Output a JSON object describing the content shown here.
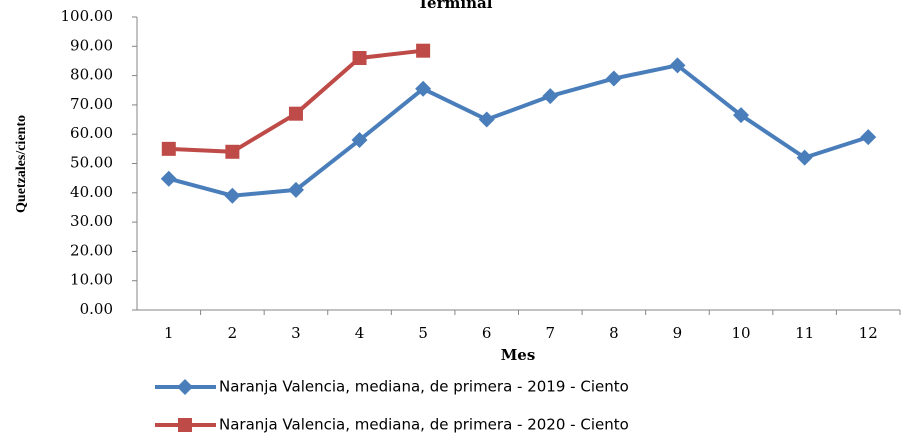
{
  "chart_data": {
    "type": "line",
    "title": "Terminal",
    "x_label": "Mes",
    "y_label": "Quetzales/ciento",
    "categories": [
      "1",
      "2",
      "3",
      "4",
      "5",
      "6",
      "7",
      "8",
      "9",
      "10",
      "11",
      "12"
    ],
    "series": [
      {
        "name": "Naranja Valencia, mediana, de primera - 2019 - Ciento",
        "color": "#4a7ebb",
        "marker": "diamond",
        "values": [
          44.8,
          39,
          41,
          58,
          75.5,
          65,
          73,
          79,
          83.5,
          66.5,
          52,
          59
        ]
      },
      {
        "name": "Naranja Valencia, mediana, de primera - 2020 - Ciento",
        "color": "#be4b48",
        "marker": "square",
        "values": [
          55,
          54,
          67,
          86,
          88.5,
          null,
          null,
          null,
          null,
          null,
          null,
          null
        ]
      }
    ],
    "ylim": [
      0,
      100
    ],
    "yticks": [
      {
        "value": 0,
        "label": "0.00"
      },
      {
        "value": 10,
        "label": "10.00"
      },
      {
        "value": 20,
        "label": "20.00"
      },
      {
        "value": 30,
        "label": "30.00"
      },
      {
        "value": 40,
        "label": "40.00"
      },
      {
        "value": 50,
        "label": "50.00"
      },
      {
        "value": 60,
        "label": "60.00"
      },
      {
        "value": 70,
        "label": "70.00"
      },
      {
        "value": 80,
        "label": "80.00"
      },
      {
        "value": 90,
        "label": "90.00"
      },
      {
        "value": 100,
        "label": "100.00"
      }
    ],
    "grid": false,
    "legend": "bottom"
  }
}
